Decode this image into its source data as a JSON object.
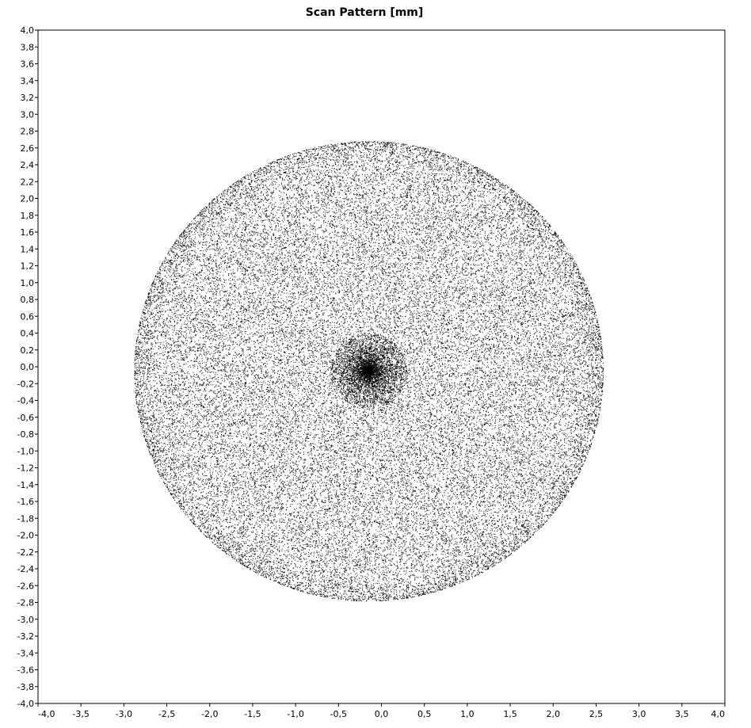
{
  "chart_data": {
    "type": "scatter",
    "title": "Scan Pattern [mm]",
    "xlabel": "",
    "ylabel": "",
    "xlim": [
      -4.0,
      4.0
    ],
    "ylim": [
      -4.0,
      4.0
    ],
    "grid": false,
    "legend": "none",
    "x_ticks": [
      -4.0,
      -3.5,
      -3.0,
      -2.5,
      -2.0,
      -1.5,
      -1.0,
      -0.5,
      0.0,
      0.5,
      1.0,
      1.5,
      2.0,
      2.5,
      3.0,
      3.5,
      4.0
    ],
    "x_tick_labels": [
      "-4,0",
      "-3,5",
      "-3,0",
      "-2,5",
      "-2,0",
      "-1,5",
      "-1,0",
      "-0,5",
      "0,0",
      "0,5",
      "1,0",
      "1,5",
      "2,0",
      "2,5",
      "3,0",
      "3,5",
      "4,0"
    ],
    "y_ticks": [
      4.0,
      3.8,
      3.6,
      3.4,
      3.2,
      3.0,
      2.8,
      2.6,
      2.4,
      2.2,
      2.0,
      1.8,
      1.6,
      1.4,
      1.2,
      1.0,
      0.8,
      0.6,
      0.4,
      0.2,
      0.0,
      -0.2,
      -0.4,
      -0.6,
      -0.8,
      -1.0,
      -1.2,
      -1.4,
      -1.6,
      -1.8,
      -2.0,
      -2.2,
      -2.4,
      -2.6,
      -2.8,
      -3.0,
      -3.2,
      -3.4,
      -3.6,
      -3.8,
      -4.0
    ],
    "y_tick_labels": [
      "4,0",
      "3,8",
      "3,6",
      "3,4",
      "3,2",
      "3,0",
      "2,8",
      "2,6",
      "2,4",
      "2,2",
      "2,0",
      "1,8",
      "1,6",
      "1,4",
      "1,2",
      "1,0",
      "0,8",
      "0,6",
      "0,4",
      "0,2",
      "0,0",
      "-0,2",
      "-0,4",
      "-0,6",
      "-0,8",
      "-1,0",
      "-1,2",
      "-1,4",
      "-1,6",
      "-1,8",
      "-2,0",
      "-2,2",
      "-2,4",
      "-2,6",
      "-2,8",
      "-3,0",
      "-3,2",
      "-3,4",
      "-3,6",
      "-3,8",
      "-4,0"
    ],
    "series": [
      {
        "pattern": "spiral",
        "center": [
          -0.15,
          -0.05
        ],
        "radius_x": 2.73,
        "radius_y": 2.73,
        "point_color": "#000000"
      }
    ]
  },
  "colors": {
    "background": "#ffffff",
    "frame": "#000000",
    "points": "#000000"
  }
}
